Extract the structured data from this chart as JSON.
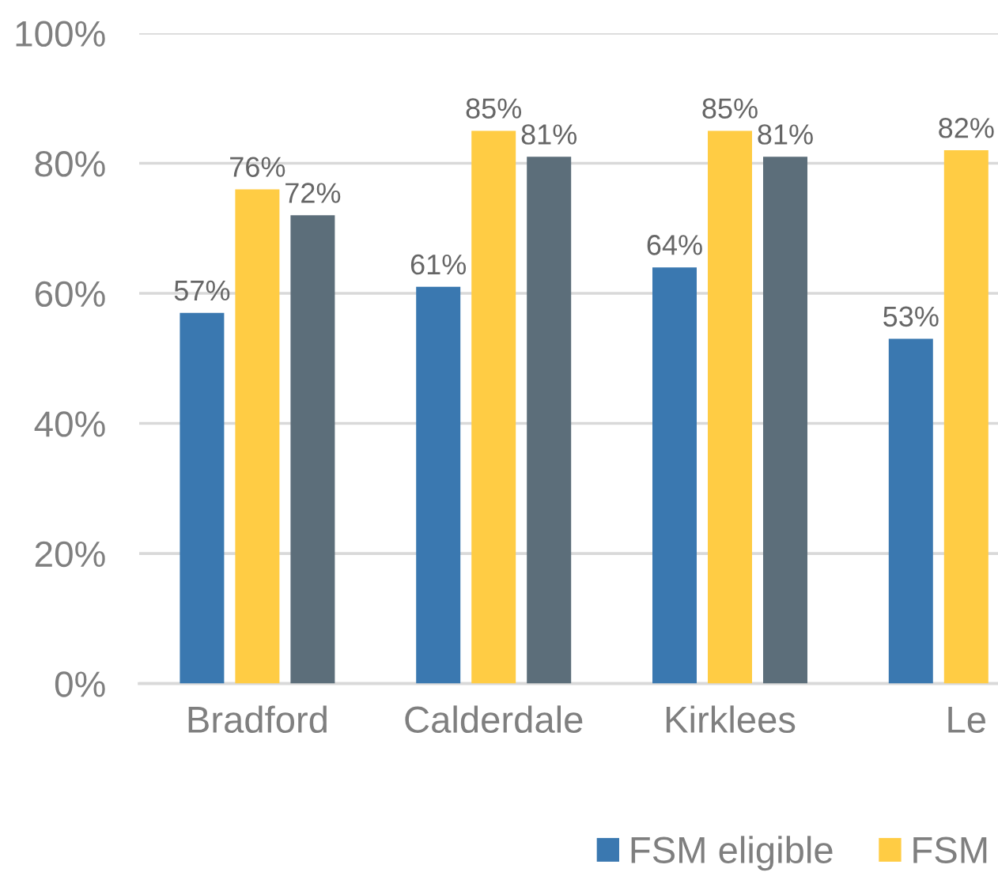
{
  "chart_data": {
    "type": "bar",
    "categories": [
      "Bradford",
      "Calderdale",
      "Kirklees",
      "Le"
    ],
    "series": [
      {
        "name": "FSM eligible",
        "color": "#3a78b0",
        "values": [
          57,
          61,
          64,
          53
        ],
        "value_labels": [
          "57%",
          "61%",
          "64%",
          "53%"
        ]
      },
      {
        "name": "FSM",
        "color": "#ffcc44",
        "values": [
          76,
          85,
          85,
          82
        ],
        "value_labels": [
          "76%",
          "85%",
          "85%",
          "82%"
        ]
      },
      {
        "color": "#5c6e7a",
        "values": [
          72,
          81,
          81,
          null
        ],
        "value_labels": [
          "72%",
          "81%",
          "81%",
          null
        ]
      }
    ],
    "ylim": [
      0,
      100
    ],
    "yticks": [
      {
        "value": 0,
        "label": "0%"
      },
      {
        "value": 20,
        "label": "20%"
      },
      {
        "value": 40,
        "label": "40%"
      },
      {
        "value": 60,
        "label": "60%"
      },
      {
        "value": 80,
        "label": "80%"
      },
      {
        "value": 100,
        "label": "100%"
      }
    ],
    "grid": "y",
    "legend": "bottom"
  }
}
